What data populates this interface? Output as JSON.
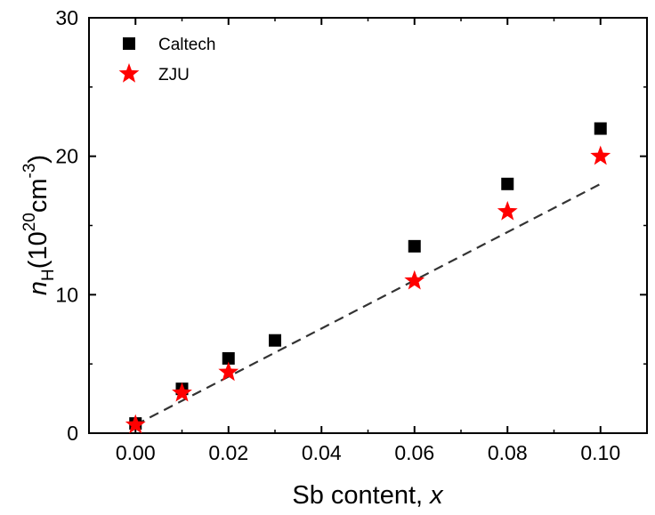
{
  "chart_data": {
    "type": "scatter",
    "xlabel": "Sb content, x",
    "xlabel_parts": {
      "text": "Sb content, ",
      "var": "x"
    },
    "ylabel_parts": {
      "var": "n",
      "sub": "H",
      "open": "(10",
      "exp1": "20",
      "unit": "cm",
      "exp2": "-3",
      "close": ")"
    },
    "xlim": [
      -0.01,
      0.11
    ],
    "ylim": [
      0,
      30
    ],
    "xticks": [
      0.0,
      0.02,
      0.04,
      0.06,
      0.08,
      0.1
    ],
    "xtick_labels": [
      "0.00",
      "0.02",
      "0.04",
      "0.06",
      "0.08",
      "0.10"
    ],
    "yticks": [
      0,
      10,
      20,
      30
    ],
    "ytick_labels": [
      "0",
      "10",
      "20",
      "30"
    ],
    "grid": false,
    "legend_position": "top-left",
    "series": [
      {
        "name": "Caltech",
        "marker": "square",
        "color": "#000000",
        "x": [
          0.0,
          0.01,
          0.02,
          0.03,
          0.06,
          0.08,
          0.1
        ],
        "y": [
          0.7,
          3.2,
          5.4,
          6.7,
          13.5,
          18.0,
          22.0
        ]
      },
      {
        "name": "ZJU",
        "marker": "star",
        "color": "#ff0000",
        "x": [
          0.0,
          0.01,
          0.02,
          0.06,
          0.08,
          0.1
        ],
        "y": [
          0.6,
          2.9,
          4.4,
          11.0,
          16.0,
          20.0
        ]
      }
    ],
    "trend_line": {
      "style": "dashed",
      "color": "#333333",
      "x": [
        0.0,
        0.1
      ],
      "y": [
        0.6,
        18.0
      ]
    }
  }
}
